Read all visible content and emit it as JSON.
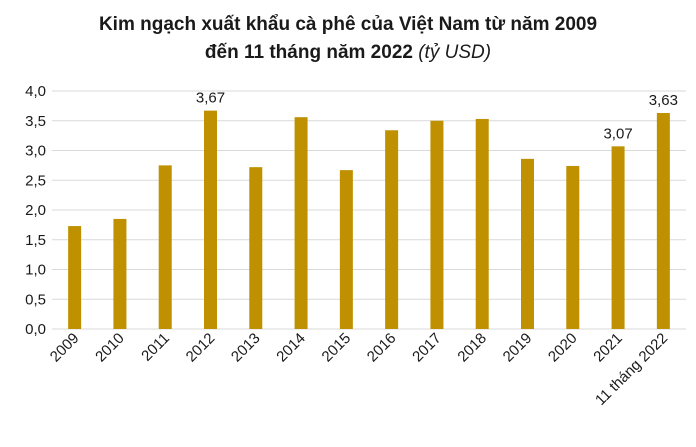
{
  "chart_data": {
    "type": "bar",
    "title_line1": "Kim ngạch xuất khẩu cà phê của Việt Nam từ năm 2009",
    "title_line2": "đến 11 tháng năm 2022",
    "unit": "(tỷ USD)",
    "categories": [
      "2009",
      "2010",
      "2011",
      "2012",
      "2013",
      "2014",
      "2015",
      "2016",
      "2017",
      "2018",
      "2019",
      "2020",
      "2021",
      "11 tháng 2022"
    ],
    "values": [
      1.73,
      1.85,
      2.75,
      3.67,
      2.72,
      3.56,
      2.67,
      3.34,
      3.5,
      3.53,
      2.86,
      2.74,
      3.07,
      3.63
    ],
    "data_labels": [
      {
        "index": 3,
        "text": "3,67"
      },
      {
        "index": 12,
        "text": "3,07"
      },
      {
        "index": 13,
        "text": "3,63"
      }
    ],
    "y_ticks": [
      "0,0",
      "0,5",
      "1,0",
      "1,5",
      "2,0",
      "2,5",
      "3,0",
      "3,5",
      "4,0"
    ],
    "ylim": [
      0,
      4.0
    ],
    "grid": true,
    "bar_color": "#BF9000",
    "grid_color": "#D9D9D9"
  }
}
